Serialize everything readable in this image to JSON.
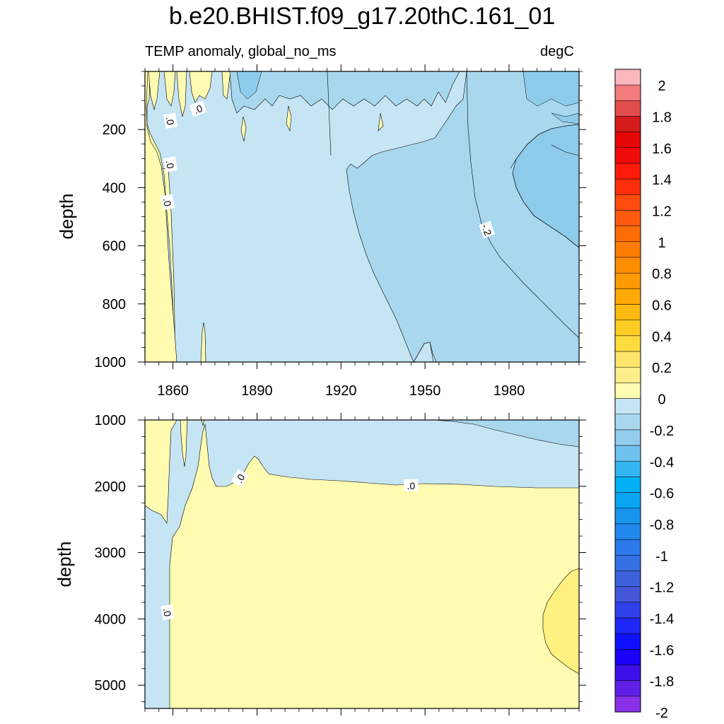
{
  "title": "b.e20.BHIST.f09_g17.20thC.161_01",
  "left_subtitle": "TEMP anomaly, global_no_ms",
  "right_subtitle": "degC",
  "colors": {
    "frame": "#000000",
    "contour_line": "#000000",
    "shading": {
      "neg_0_2": "#c6e5f4",
      "neg_2_4": "#a9d8ee",
      "neg_4_6": "#8ecbeb",
      "pos_0_2": "#fffbb0",
      "pos_2_4": "#fff080"
    }
  },
  "chart_data": [
    {
      "type": "contour",
      "panel": "upper",
      "title": "",
      "xlabel": "",
      "ylabel": "depth",
      "xlim": [
        1850,
        2005
      ],
      "ylim": [
        1000,
        0
      ],
      "x_ticks": [
        1860,
        1890,
        1920,
        1950,
        1980
      ],
      "y_ticks": [
        200,
        400,
        600,
        800,
        1000
      ],
      "contour_interval": 0.2,
      "contour_labels": [
        {
          "text": ".0",
          "x": 1859,
          "y": 170,
          "rot": 80
        },
        {
          "text": ".0",
          "x": 1869,
          "y": 130,
          "rot": -20
        },
        {
          "text": ".0",
          "x": 1859,
          "y": 320,
          "rot": 80
        },
        {
          "text": ".0",
          "x": 1858,
          "y": 450,
          "rot": 80
        },
        {
          "text": "-.2",
          "x": 1972,
          "y": 545,
          "rot": 70
        }
      ],
      "regions": [
        {
          "level": "0 to 0.2",
          "x_range": [
            1850,
            1862
          ],
          "y_range": [
            100,
            1000
          ]
        },
        {
          "level": "-0.2 to 0",
          "x_range": [
            1862,
            1925
          ],
          "y_range": [
            50,
            1000
          ]
        },
        {
          "level": "-0.4 to -0.2",
          "x_range": [
            1925,
            2005
          ],
          "y_range": [
            50,
            1000
          ]
        },
        {
          "level": "-0.6 to -0.4",
          "x_range": [
            1978,
            2005
          ],
          "y_range": [
            200,
            600
          ]
        }
      ]
    },
    {
      "type": "contour",
      "panel": "lower",
      "title": "",
      "xlabel": "",
      "ylabel": "depth",
      "xlim": [
        1850,
        2005
      ],
      "ylim": [
        5350,
        1000
      ],
      "x_ticks": [
        1860,
        1890,
        1920,
        1950,
        1980
      ],
      "y_ticks": [
        1000,
        2000,
        3000,
        4000,
        5000
      ],
      "contour_interval": 0.2,
      "contour_labels": [
        {
          "text": ".0",
          "x": 1884,
          "y": 1880,
          "rot": -60
        },
        {
          "text": ".0",
          "x": 1945,
          "y": 1990,
          "rot": 0
        },
        {
          "text": ".0",
          "x": 1858,
          "y": 3900,
          "rot": 80
        }
      ],
      "regions": [
        {
          "level": "-0.2 to 0",
          "x_range": [
            1850,
            2005
          ],
          "y_range": [
            1000,
            2050
          ]
        },
        {
          "level": "-0.4 to -0.2",
          "x_range": [
            1955,
            2005
          ],
          "y_range": [
            1000,
            1400
          ]
        },
        {
          "level": "0 to 0.2",
          "x_range": [
            1860,
            2005
          ],
          "y_range": [
            2000,
            5350
          ]
        },
        {
          "level": "0.2 to 0.4",
          "x_range": [
            1963,
            2005
          ],
          "y_range": [
            3250,
            4850
          ]
        }
      ]
    }
  ],
  "colorbar": {
    "labels": [
      "2",
      "1.8",
      "1.6",
      "1.4",
      "1.2",
      "1",
      "0.8",
      "0.6",
      "0.4",
      "0.2",
      "0",
      "-0.2",
      "-0.4",
      "-0.6",
      "-0.8",
      "-1",
      "-1.2",
      "-1.4",
      "-1.6",
      "-1.8",
      "-2"
    ],
    "colors": [
      "#fbb8bc",
      "#f47b7b",
      "#e24c4c",
      "#d31b1b",
      "#e50505",
      "#f10a0a",
      "#ff1a0a",
      "#ff2e0a",
      "#ff4b0e",
      "#ff5a0e",
      "#ff6e06",
      "#ff7c00",
      "#ff8d00",
      "#ff9a04",
      "#ffaa06",
      "#ffba10",
      "#ffcc24",
      "#ffdc3e",
      "#ffe66a",
      "#ffee8c",
      "#fffbb0",
      "#c6e5f4",
      "#a9d8ee",
      "#93cdec",
      "#6fc2ee",
      "#33b7f2",
      "#00b1f7",
      "#08a5f2",
      "#1695ee",
      "#2188ee",
      "#2c7aeb",
      "#3570e4",
      "#3d62dc",
      "#4457d8",
      "#2f3fe9",
      "#1e27f5",
      "#0e10ff",
      "#1a00f6",
      "#3d10ea",
      "#5f1fe6",
      "#8a2fe8"
    ]
  }
}
